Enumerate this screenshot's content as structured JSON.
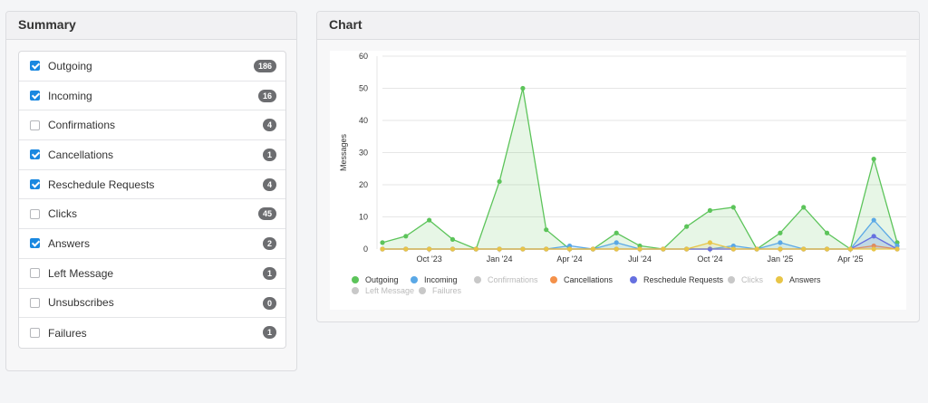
{
  "summary": {
    "title": "Summary",
    "items": [
      {
        "label": "Outgoing",
        "count": "186",
        "checked": true
      },
      {
        "label": "Incoming",
        "count": "16",
        "checked": true
      },
      {
        "label": "Confirmations",
        "count": "4",
        "checked": false
      },
      {
        "label": "Cancellations",
        "count": "1",
        "checked": true
      },
      {
        "label": "Reschedule Requests",
        "count": "4",
        "checked": true
      },
      {
        "label": "Clicks",
        "count": "45",
        "checked": false
      },
      {
        "label": "Answers",
        "count": "2",
        "checked": true
      },
      {
        "label": "Left Message",
        "count": "1",
        "checked": false
      },
      {
        "label": "Unsubscribes",
        "count": "0",
        "checked": false
      },
      {
        "label": "Failures",
        "count": "1",
        "checked": false
      }
    ]
  },
  "chart_panel": {
    "title": "Chart"
  },
  "chart_data": {
    "type": "area",
    "ylabel": "Messages",
    "ylim": [
      0,
      60
    ],
    "yticks": [
      0,
      10,
      20,
      30,
      40,
      50,
      60
    ],
    "grid": true,
    "legend_position": "bottom",
    "xtick_labels": [
      "Oct '23",
      "Jan '24",
      "Apr '24",
      "Jul '24",
      "Oct '24",
      "Jan '25",
      "Apr '25"
    ],
    "xtick_index": [
      2,
      5,
      8,
      11,
      14,
      17,
      20
    ],
    "num_points": 23,
    "series": [
      {
        "name": "Outgoing",
        "color": "#5cc45a",
        "active": true,
        "values": [
          2,
          4,
          9,
          3,
          0,
          21,
          50,
          6,
          0,
          0,
          5,
          1,
          0,
          7,
          12,
          13,
          0,
          5,
          13,
          5,
          0,
          28,
          2
        ]
      },
      {
        "name": "Incoming",
        "color": "#5aa8e6",
        "active": true,
        "values": [
          0,
          0,
          0,
          0,
          0,
          0,
          0,
          0,
          1,
          0,
          2,
          0,
          0,
          0,
          0,
          1,
          0,
          2,
          0,
          0,
          0,
          9,
          1
        ]
      },
      {
        "name": "Confirmations",
        "color": "#cccccc",
        "active": false,
        "values": [
          0,
          0,
          0,
          0,
          0,
          0,
          0,
          0,
          0,
          0,
          0,
          0,
          0,
          0,
          0,
          0,
          0,
          0,
          0,
          0,
          0,
          0,
          0
        ]
      },
      {
        "name": "Cancellations",
        "color": "#f4914a",
        "active": true,
        "values": [
          0,
          0,
          0,
          0,
          0,
          0,
          0,
          0,
          0,
          0,
          0,
          0,
          0,
          0,
          0,
          0,
          0,
          0,
          0,
          0,
          0,
          1,
          0
        ]
      },
      {
        "name": "Reschedule Requests",
        "color": "#6670e0",
        "active": true,
        "values": [
          0,
          0,
          0,
          0,
          0,
          0,
          0,
          0,
          0,
          0,
          0,
          0,
          0,
          0,
          0,
          0,
          0,
          0,
          0,
          0,
          0,
          4,
          0
        ]
      },
      {
        "name": "Clicks",
        "color": "#cccccc",
        "active": false,
        "values": [
          0,
          0,
          0,
          0,
          0,
          0,
          0,
          0,
          0,
          0,
          0,
          0,
          0,
          0,
          0,
          0,
          0,
          0,
          0,
          0,
          0,
          0,
          0
        ]
      },
      {
        "name": "Answers",
        "color": "#e8c547",
        "active": true,
        "values": [
          0,
          0,
          0,
          0,
          0,
          0,
          0,
          0,
          0,
          0,
          0,
          0,
          0,
          0,
          2,
          0,
          0,
          0,
          0,
          0,
          0,
          0,
          0
        ]
      },
      {
        "name": "Left Message",
        "color": "#cccccc",
        "active": false,
        "values": [
          0,
          0,
          0,
          0,
          0,
          0,
          0,
          0,
          0,
          0,
          0,
          0,
          0,
          0,
          0,
          0,
          0,
          0,
          0,
          0,
          0,
          0,
          0
        ]
      },
      {
        "name": "Failures",
        "color": "#cccccc",
        "active": false,
        "values": [
          0,
          0,
          0,
          0,
          0,
          0,
          0,
          0,
          0,
          0,
          0,
          0,
          0,
          0,
          0,
          0,
          0,
          0,
          0,
          0,
          0,
          0,
          0
        ]
      }
    ]
  }
}
